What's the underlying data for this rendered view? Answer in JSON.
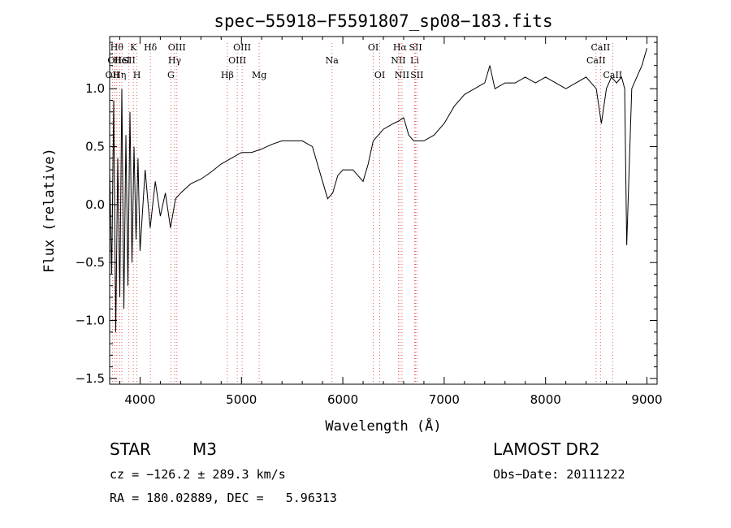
{
  "chart_data": {
    "type": "line",
    "title": "spec−55918−F5591807_sp08−183.fits",
    "xlabel": "Wavelength (Å)",
    "ylabel": "Flux (relative)",
    "xlim": [
      3700,
      9100
    ],
    "ylim": [
      -1.55,
      1.45
    ],
    "xticks": [
      4000,
      5000,
      6000,
      7000,
      8000,
      9000
    ],
    "yticks": [
      1.0,
      0.5,
      0.0,
      -0.5,
      -1.0,
      -1.5
    ],
    "ytick_labels": [
      "1.0",
      "0.5",
      "0.0",
      "−0.5",
      "−1.0",
      "−1.5"
    ],
    "grid": false,
    "series": [
      {
        "x": [
          3700,
          3720,
          3740,
          3760,
          3780,
          3800,
          3820,
          3840,
          3860,
          3880,
          3900,
          3920,
          3940,
          3960,
          3980,
          4000,
          4050,
          4100,
          4150,
          4200,
          4250,
          4300,
          4350,
          4400,
          4500,
          4600,
          4700,
          4800,
          4900,
          5000,
          5100,
          5200,
          5300,
          5400,
          5500,
          5600,
          5700,
          5800,
          5850,
          5900,
          5950,
          6000,
          6100,
          6200,
          6250,
          6300,
          6350,
          6400,
          6500,
          6550,
          6600,
          6650,
          6700,
          6750,
          6800,
          6900,
          7000,
          7100,
          7200,
          7300,
          7400,
          7450,
          7500,
          7600,
          7700,
          7800,
          7900,
          8000,
          8100,
          8200,
          8300,
          8400,
          8500,
          8550,
          8600,
          8650,
          8700,
          8750,
          8780,
          8800,
          8850,
          8900,
          8950,
          9000
        ],
        "y": [
          0.3,
          -0.6,
          0.9,
          -1.1,
          0.4,
          -0.8,
          1.0,
          -0.9,
          0.6,
          -0.7,
          0.8,
          -0.5,
          0.5,
          -0.3,
          0.4,
          -0.4,
          0.3,
          -0.2,
          0.2,
          -0.1,
          0.1,
          -0.2,
          0.05,
          0.1,
          0.18,
          0.22,
          0.28,
          0.35,
          0.4,
          0.45,
          0.45,
          0.48,
          0.52,
          0.55,
          0.55,
          0.55,
          0.5,
          0.2,
          0.05,
          0.1,
          0.25,
          0.3,
          0.3,
          0.2,
          0.35,
          0.55,
          0.6,
          0.65,
          0.7,
          0.72,
          0.75,
          0.6,
          0.55,
          0.55,
          0.55,
          0.6,
          0.7,
          0.85,
          0.95,
          1.0,
          1.05,
          1.2,
          1.0,
          1.05,
          1.05,
          1.1,
          1.05,
          1.1,
          1.05,
          1.0,
          1.05,
          1.1,
          1.0,
          0.7,
          1.0,
          1.1,
          1.05,
          1.1,
          1.0,
          -0.35,
          1.0,
          1.1,
          1.2,
          1.35
        ]
      }
    ],
    "lines": [
      {
        "wl": 3727,
        "row": 2,
        "label": "OII"
      },
      {
        "wl": 3750,
        "row": 1,
        "label": "OII"
      },
      {
        "wl": 3771,
        "row": 0,
        "label": "Hθ"
      },
      {
        "wl": 3798,
        "row": 2,
        "label": "Hη"
      },
      {
        "wl": 3820,
        "row": 1,
        "label": "HeI"
      },
      {
        "wl": 3890,
        "row": 1,
        "label": "SII"
      },
      {
        "wl": 3934,
        "row": 0,
        "label": "K"
      },
      {
        "wl": 3969,
        "row": 2,
        "label": "H"
      },
      {
        "wl": 4102,
        "row": 0,
        "label": "Hδ"
      },
      {
        "wl": 4304,
        "row": 2,
        "label": "G"
      },
      {
        "wl": 4341,
        "row": 1,
        "label": "Hγ"
      },
      {
        "wl": 4363,
        "row": 0,
        "label": "OIII"
      },
      {
        "wl": 4861,
        "row": 2,
        "label": "Hβ"
      },
      {
        "wl": 4959,
        "row": 1,
        "label": "OIII"
      },
      {
        "wl": 5007,
        "row": 0,
        "label": "OIII"
      },
      {
        "wl": 5175,
        "row": 2,
        "label": "Mg"
      },
      {
        "wl": 5893,
        "row": 1,
        "label": "Na"
      },
      {
        "wl": 6300,
        "row": 0,
        "label": "OI"
      },
      {
        "wl": 6364,
        "row": 2,
        "label": "OI"
      },
      {
        "wl": 6548,
        "row": 1,
        "label": "NII"
      },
      {
        "wl": 6563,
        "row": 0,
        "label": "Hα"
      },
      {
        "wl": 6584,
        "row": 2,
        "label": "NII"
      },
      {
        "wl": 6708,
        "row": 1,
        "label": "Li"
      },
      {
        "wl": 6717,
        "row": 0,
        "label": "SII"
      },
      {
        "wl": 6731,
        "row": 2,
        "label": "SII"
      },
      {
        "wl": 8498,
        "row": 1,
        "label": "CaII"
      },
      {
        "wl": 8542,
        "row": 0,
        "label": "CaII"
      },
      {
        "wl": 8662,
        "row": 2,
        "label": "CaII"
      }
    ]
  },
  "info": {
    "class": "STAR",
    "subclass": "M3",
    "cz": "cz = −126.2 ± 289.3 km/s",
    "coords": "RA = 180.02889, DEC =   5.96313",
    "survey": "LAMOST DR2",
    "obs_date": "Obs−Date: 20111222"
  }
}
